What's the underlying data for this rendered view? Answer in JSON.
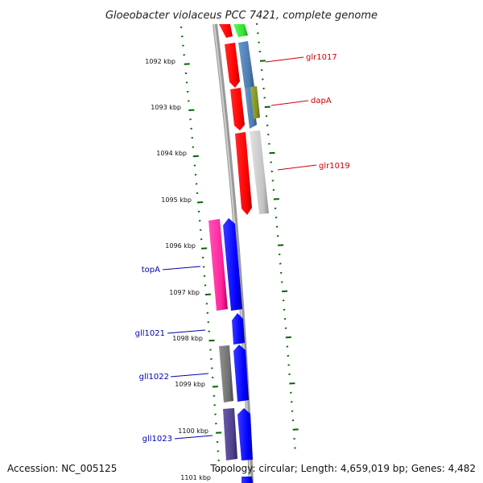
{
  "title": "Gloeobacter violaceus PCC 7421, complete genome",
  "footer": {
    "accession": "Accession: NC_005125",
    "topology": "Topology: circular; Length: 4,659,019 bp; Genes: 4,482"
  },
  "ruler": [
    "1092 kbp",
    "1093 kbp",
    "1094 kbp",
    "1095 kbp",
    "1096 kbp",
    "1097 kbp",
    "1098 kbp",
    "1099 kbp",
    "1100 kbp",
    "1101 kbp"
  ],
  "gene_labels": {
    "right": [
      "glr1017",
      "dapA",
      "glr1019"
    ],
    "left": [
      "topA",
      "gll1021",
      "gll1022",
      "gll1023"
    ]
  },
  "colors": {
    "forward_cds": "#ff0000",
    "reverse_cds": "#0000ff",
    "right_label": "#cc0000",
    "left_label": "#0000aa",
    "ticks": "#006600",
    "backbone": "#888888"
  }
}
